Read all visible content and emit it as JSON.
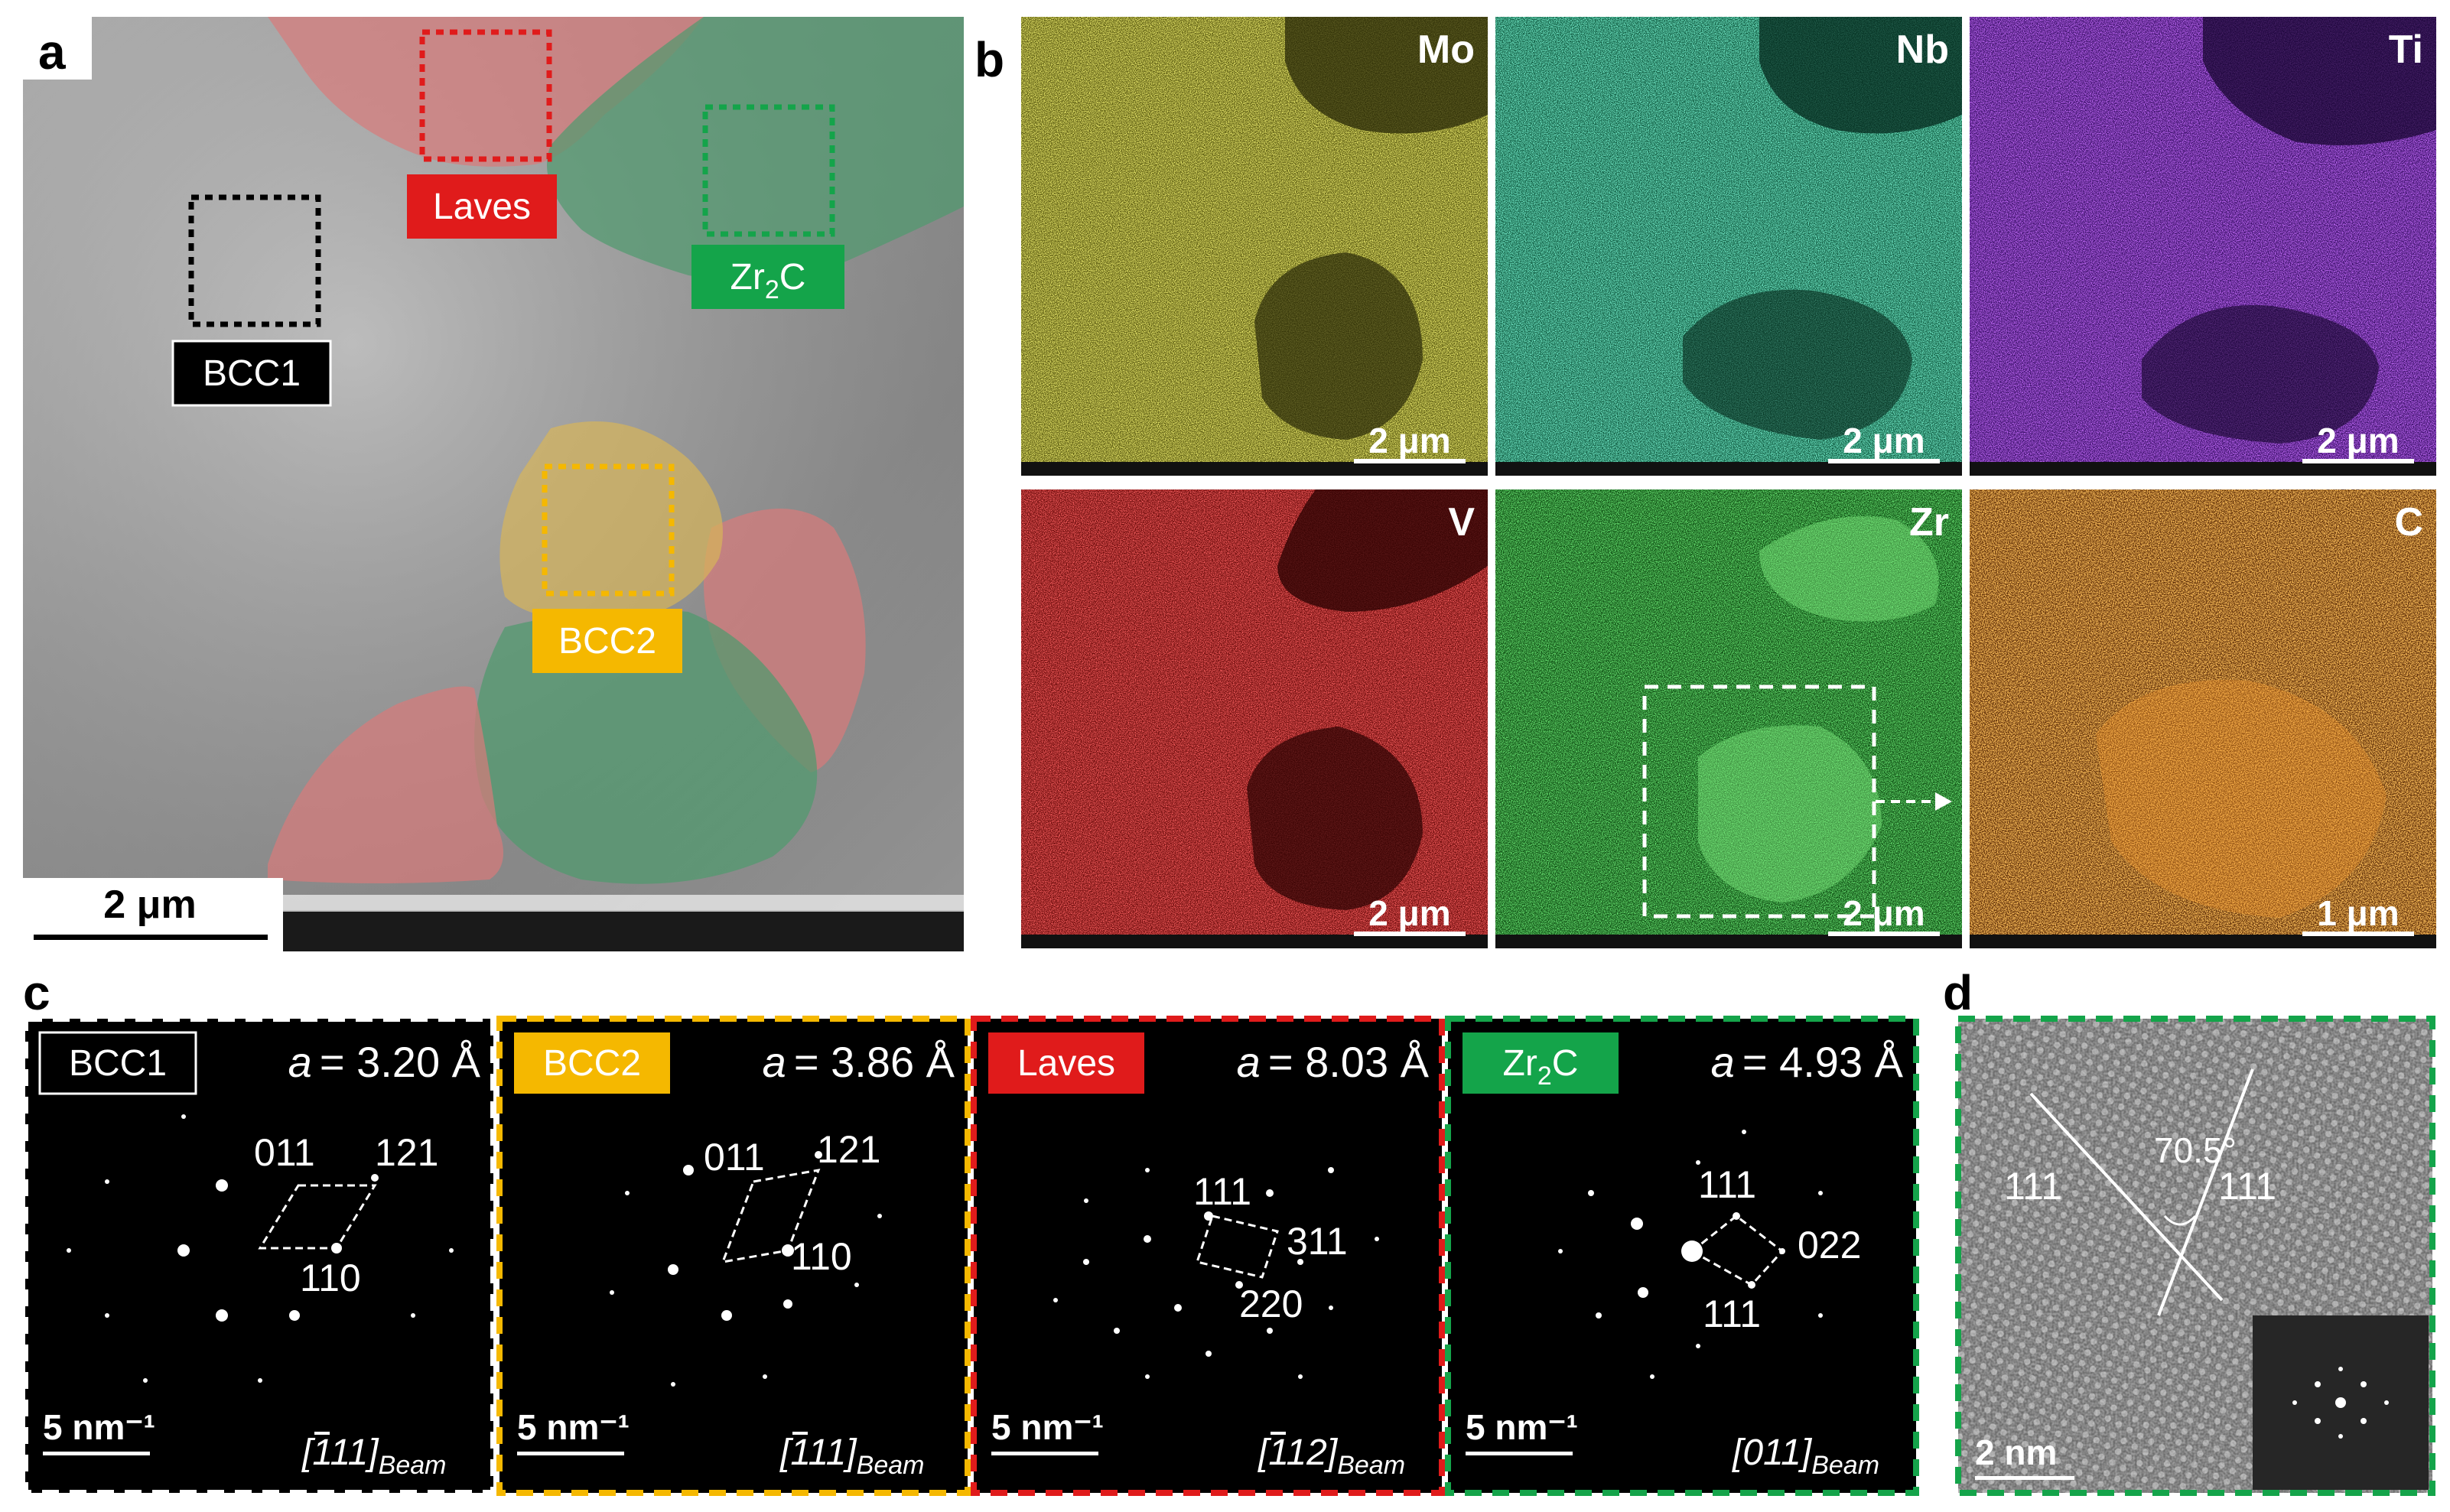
{
  "panels": {
    "a": {
      "label": "a",
      "regions": {
        "laves": "Laves",
        "zr2c_base": "Zr",
        "zr2c_sub": "2",
        "zr2c_tail": "C",
        "bcc1": "BCC1",
        "bcc2": "BCC2"
      },
      "scalebar": "2 μm"
    },
    "b": {
      "label": "b",
      "maps": [
        {
          "element": "Mo",
          "scalebar": "2 μm",
          "color": "#d8d62a"
        },
        {
          "element": "Nb",
          "scalebar": "2 μm",
          "color": "#2fd29a"
        },
        {
          "element": "Ti",
          "scalebar": "2 μm",
          "color": "#8a22e6"
        },
        {
          "element": "V",
          "scalebar": "2 μm",
          "color": "#e01f1f"
        },
        {
          "element": "Zr",
          "scalebar": "2 μm",
          "color": "#22b82a"
        },
        {
          "element": "C",
          "scalebar": "1 μm",
          "color": "#e0801c"
        }
      ]
    },
    "c": {
      "label": "c",
      "patterns": [
        {
          "phase": "BCC1",
          "lattice_sym": "a",
          "lattice_val": "= 3.20 Å",
          "zone_axis": "[111]",
          "zone_sub": "Beam",
          "scalebar": "5 nm⁻¹",
          "indices": [
            "011",
            "121",
            "110"
          ],
          "border": "#ffffff",
          "tag_color": "#000000"
        },
        {
          "phase": "BCC2",
          "lattice_sym": "a",
          "lattice_val": "= 3.86 Å",
          "zone_axis": "[111]",
          "zone_sub": "Beam",
          "scalebar": "5 nm⁻¹",
          "indices": [
            "011",
            "121",
            "110"
          ],
          "border": "#f5b800",
          "tag_color": "#f5b800"
        },
        {
          "phase": "Laves",
          "lattice_sym": "a",
          "lattice_val": "= 8.03 Å",
          "zone_axis": "[112]",
          "zone_sub": "Beam",
          "scalebar": "5 nm⁻¹",
          "indices": [
            "111",
            "311",
            "220"
          ],
          "border": "#e01b1b",
          "tag_color": "#e01b1b"
        },
        {
          "phase_base": "Zr",
          "phase_sub": "2",
          "phase_tail": "C",
          "lattice_sym": "a",
          "lattice_val": "= 4.93 Å",
          "zone_axis": "[011]",
          "zone_sub": "Beam",
          "scalebar": "5 nm⁻¹",
          "indices": [
            "111",
            "022",
            "111"
          ],
          "border": "#14a44a",
          "tag_color": "#14a44a"
        }
      ]
    },
    "d": {
      "label": "d",
      "indices": [
        "111",
        "111"
      ],
      "angle": "70.5°",
      "scalebar": "2 nm",
      "border": "#14a44a"
    }
  },
  "colors": {
    "laves": "#e01b1b",
    "zr2c": "#14a44a",
    "bcc1": "#000000",
    "bcc2": "#f5b800"
  }
}
